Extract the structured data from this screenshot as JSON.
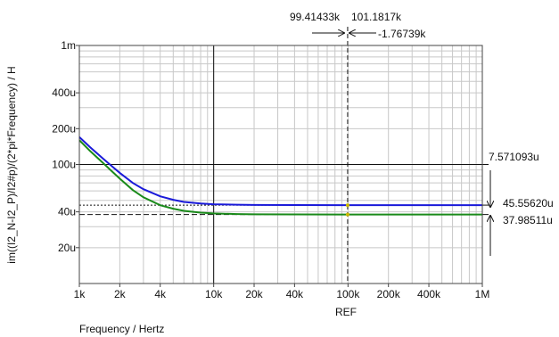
{
  "chart_data": {
    "type": "line",
    "xlabel": "Frequency / Hertz",
    "ylabel": "im((I2_N-I2_P)/I2#p)/(2*pi*Frequency) / H",
    "xscale": "log",
    "yscale": "log",
    "xlim": [
      1000,
      1000000
    ],
    "ylim": [
      10,
      1000
    ],
    "grid": true,
    "x_ticks": [
      {
        "value": 1000,
        "label": "1k"
      },
      {
        "value": 2000,
        "label": "2k"
      },
      {
        "value": 4000,
        "label": "4k"
      },
      {
        "value": 10000,
        "label": "10k"
      },
      {
        "value": 20000,
        "label": "20k"
      },
      {
        "value": 40000,
        "label": "40k"
      },
      {
        "value": 100000,
        "label": "100k"
      },
      {
        "value": 200000,
        "label": "200k"
      },
      {
        "value": 400000,
        "label": "400k"
      },
      {
        "value": 1000000,
        "label": "1M"
      }
    ],
    "y_ticks": [
      {
        "value": 1000,
        "label": "1m"
      },
      {
        "value": 400,
        "label": "400u"
      },
      {
        "value": 200,
        "label": "200u"
      },
      {
        "value": 100,
        "label": "100u"
      },
      {
        "value": 40,
        "label": "40u"
      },
      {
        "value": 20,
        "label": "20u"
      }
    ],
    "series": [
      {
        "color": "#1a1ad9",
        "x": [
          1000,
          1200,
          1500,
          2000,
          2500,
          3000,
          4000,
          5000,
          6000,
          8000,
          10000,
          15000,
          20000,
          40000,
          100000,
          1000000
        ],
        "y": [
          170,
          140,
          112,
          85,
          70,
          62,
          54,
          50.5,
          48.5,
          47,
          46.3,
          45.9,
          45.7,
          45.6,
          45.56,
          45.55
        ]
      },
      {
        "color": "#1a8a1a",
        "x": [
          1000,
          1200,
          1500,
          2000,
          2500,
          3000,
          4000,
          5000,
          6000,
          8000,
          10000,
          15000,
          20000,
          40000,
          100000,
          1000000
        ],
        "y": [
          160,
          130,
          103,
          76,
          61,
          53,
          45.5,
          42.5,
          40.8,
          39.4,
          38.8,
          38.3,
          38.15,
          38.05,
          37.99,
          37.98
        ]
      }
    ],
    "markers": {
      "cursor_x_solid": 10000,
      "cursor_x_dashed": 99414.33,
      "h_solid": 100,
      "h_dotted": 45.5562,
      "h_dashed": 37.98511
    },
    "readouts": {
      "x1": "99.41433k",
      "x2": "101.1817k",
      "dx": "-1.76739k",
      "dy1": "7.571093u",
      "y_blue": "45.55620u",
      "y_green": "37.98511u",
      "ref": "REF"
    }
  }
}
